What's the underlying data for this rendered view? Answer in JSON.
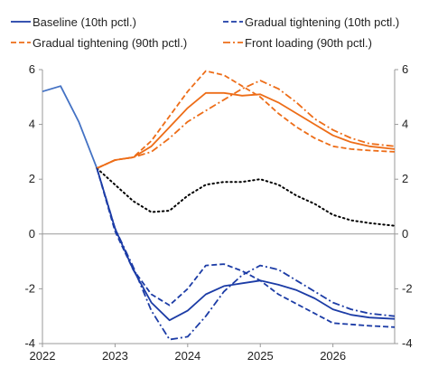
{
  "chart_data": {
    "type": "line",
    "x_ticks": [
      "2022",
      "2023",
      "2024",
      "2025",
      "2026"
    ],
    "xlim": [
      2022.0,
      2026.85
    ],
    "ylim": [
      -4,
      6
    ],
    "y_ticks": [
      "-4",
      "-2",
      "0",
      "2",
      "4",
      "6"
    ],
    "y_ticks_right": [
      "-4",
      "-2",
      "0",
      "2",
      "4",
      "6"
    ],
    "grid": false,
    "zero_line": true,
    "legend": {
      "placement": "top",
      "entries": [
        {
          "label": "Baseline (10th pctl.)",
          "series": "baseline_10"
        },
        {
          "label": "Gradual tightening (10th pctl.)",
          "series": "gradual_10"
        },
        {
          "label": "Gradual tightening (90th pctl.)",
          "series": "gradual_90"
        },
        {
          "label": "Front loading (90th pctl.)",
          "series": "front_90"
        }
      ]
    },
    "series": [
      {
        "id": "history",
        "color": "#4472c4",
        "dash": "solid",
        "x": [
          2022.0,
          2022.25,
          2022.5,
          2022.75
        ],
        "y": [
          5.2,
          5.4,
          4.1,
          2.4
        ]
      },
      {
        "id": "median_path",
        "color": "#000000",
        "dash": "dotted",
        "x": [
          2022.75,
          2023.0,
          2023.25,
          2023.5,
          2023.75,
          2024.0,
          2024.25,
          2024.5,
          2024.75,
          2025.0,
          2025.25,
          2025.5,
          2025.75,
          2026.0,
          2026.25,
          2026.5,
          2026.85
        ],
        "y": [
          2.4,
          1.8,
          1.2,
          0.8,
          0.85,
          1.4,
          1.8,
          1.9,
          1.9,
          2.0,
          1.8,
          1.4,
          1.1,
          0.7,
          0.5,
          0.4,
          0.3
        ]
      },
      {
        "id": "baseline_90",
        "color": "#ed6d18",
        "dash": "solid",
        "x": [
          2022.75,
          2023.0,
          2023.25,
          2023.5,
          2023.75,
          2024.0,
          2024.25,
          2024.5,
          2024.75,
          2025.0,
          2025.25,
          2025.5,
          2025.75,
          2026.0,
          2026.25,
          2026.5,
          2026.85
        ],
        "y": [
          2.4,
          2.7,
          2.8,
          3.2,
          3.9,
          4.6,
          5.15,
          5.15,
          5.05,
          5.1,
          4.8,
          4.4,
          4.0,
          3.6,
          3.35,
          3.2,
          3.1
        ]
      },
      {
        "id": "gradual_90",
        "color": "#ed6d18",
        "dash": "dashed",
        "x": [
          2022.75,
          2023.0,
          2023.25,
          2023.5,
          2023.75,
          2024.0,
          2024.25,
          2024.5,
          2024.75,
          2025.0,
          2025.25,
          2025.5,
          2025.75,
          2026.0,
          2026.25,
          2026.5,
          2026.85
        ],
        "y": [
          2.4,
          2.7,
          2.8,
          3.4,
          4.3,
          5.2,
          5.95,
          5.8,
          5.4,
          5.0,
          4.4,
          3.9,
          3.5,
          3.2,
          3.1,
          3.05,
          3.0
        ]
      },
      {
        "id": "front_90",
        "color": "#ed6d18",
        "dash": "dashdot",
        "x": [
          2022.75,
          2023.0,
          2023.25,
          2023.5,
          2023.75,
          2024.0,
          2024.25,
          2024.5,
          2024.75,
          2025.0,
          2025.25,
          2025.5,
          2025.75,
          2026.0,
          2026.25,
          2026.5,
          2026.85
        ],
        "y": [
          2.4,
          2.7,
          2.8,
          3.0,
          3.5,
          4.1,
          4.5,
          4.9,
          5.3,
          5.6,
          5.3,
          4.8,
          4.2,
          3.8,
          3.5,
          3.3,
          3.2
        ]
      },
      {
        "id": "baseline_10",
        "color": "#1c3ca6",
        "dash": "solid",
        "x": [
          2022.75,
          2023.0,
          2023.25,
          2023.5,
          2023.75,
          2024.0,
          2024.25,
          2024.5,
          2024.75,
          2025.0,
          2025.25,
          2025.5,
          2025.75,
          2026.0,
          2026.25,
          2026.5,
          2026.85
        ],
        "y": [
          2.4,
          0.2,
          -1.3,
          -2.5,
          -3.15,
          -2.8,
          -2.2,
          -1.9,
          -1.8,
          -1.7,
          -1.85,
          -2.05,
          -2.35,
          -2.75,
          -2.95,
          -3.05,
          -3.1
        ]
      },
      {
        "id": "gradual_10",
        "color": "#1c3ca6",
        "dash": "dashed",
        "x": [
          2022.75,
          2023.0,
          2023.25,
          2023.5,
          2023.75,
          2024.0,
          2024.25,
          2024.5,
          2024.75,
          2025.0,
          2025.25,
          2025.5,
          2025.75,
          2026.0,
          2026.25,
          2026.5,
          2026.85
        ],
        "y": [
          2.4,
          0.1,
          -1.3,
          -2.2,
          -2.6,
          -2.0,
          -1.15,
          -1.1,
          -1.35,
          -1.7,
          -2.2,
          -2.55,
          -2.9,
          -3.25,
          -3.3,
          -3.35,
          -3.4
        ]
      },
      {
        "id": "front_10",
        "color": "#1c3ca6",
        "dash": "dashdot",
        "x": [
          2022.75,
          2023.0,
          2023.25,
          2023.5,
          2023.75,
          2024.0,
          2024.25,
          2024.5,
          2024.75,
          2025.0,
          2025.25,
          2025.5,
          2025.75,
          2026.0,
          2026.25,
          2026.5,
          2026.85
        ],
        "y": [
          2.4,
          0.2,
          -1.2,
          -2.8,
          -3.85,
          -3.75,
          -3.0,
          -2.1,
          -1.5,
          -1.15,
          -1.3,
          -1.7,
          -2.1,
          -2.5,
          -2.75,
          -2.9,
          -3.0
        ]
      }
    ]
  }
}
